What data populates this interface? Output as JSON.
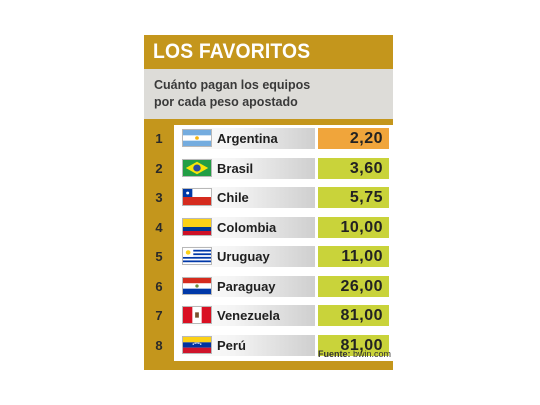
{
  "header": {
    "title": "LOS FAVORITOS"
  },
  "subtitle": {
    "line1": "Cuánto pagan los equipos",
    "line2": "por cada peso apostado"
  },
  "colors": {
    "gold": "#c4961c",
    "highlight_odds": "#f0a53b",
    "odds": "#c9d33a",
    "subhead_bg": "#dddcd8"
  },
  "rows": [
    {
      "rank": "1",
      "country": "Argentina",
      "odds": "2,20",
      "flag": "argentina-flag-icon"
    },
    {
      "rank": "2",
      "country": "Brasil",
      "odds": "3,60",
      "flag": "brazil-flag-icon"
    },
    {
      "rank": "3",
      "country": "Chile",
      "odds": "5,75",
      "flag": "chile-flag-icon"
    },
    {
      "rank": "4",
      "country": "Colombia",
      "odds": "10,00",
      "flag": "colombia-flag-icon"
    },
    {
      "rank": "5",
      "country": "Uruguay",
      "odds": "11,00",
      "flag": "uruguay-flag-icon"
    },
    {
      "rank": "6",
      "country": "Paraguay",
      "odds": "26,00",
      "flag": "paraguay-flag-icon"
    },
    {
      "rank": "7",
      "country": "Venezuela",
      "odds": "81,00",
      "flag": "venezuela-flag-icon"
    },
    {
      "rank": "8",
      "country": "Perú",
      "odds": "81,00",
      "flag": "peru-flag-icon"
    }
  ],
  "footer": {
    "source_label": "Fuente:",
    "source_value": "bwin.com"
  }
}
